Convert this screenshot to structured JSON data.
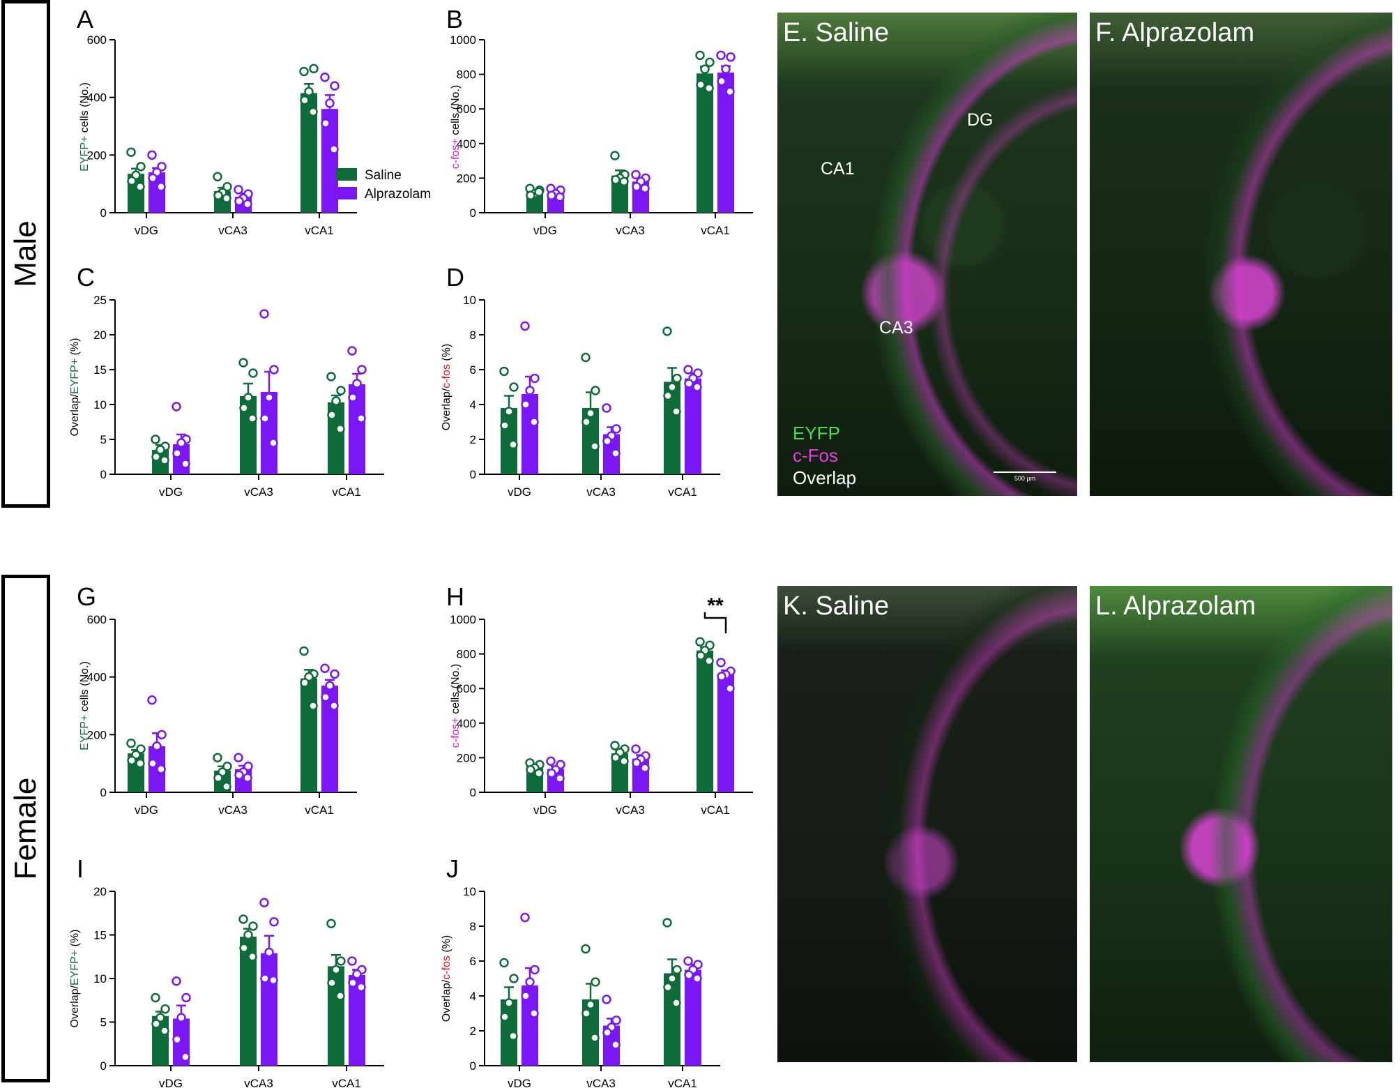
{
  "sections": {
    "male": "Male",
    "female": "Female"
  },
  "legend": {
    "items": [
      {
        "label": "Saline",
        "color": "#0e6b3a"
      },
      {
        "label": "Alprazolam",
        "color": "#7b16f5"
      }
    ]
  },
  "colors": {
    "saline": "#0e6b3a",
    "alprazolam": "#7b16f5",
    "green_text": "#0e6b3a",
    "magenta_text": "#d41bc8",
    "red_text": "#e0101a"
  },
  "chart_data": [
    {
      "panel": "A",
      "type": "bar",
      "categories": [
        "vDG",
        "vCA3",
        "vCA1"
      ],
      "ylim": [
        0,
        600
      ],
      "yticks": [
        0,
        200,
        400,
        600
      ],
      "ylabel_parts": [
        {
          "text": "EYFP+",
          "color": "green"
        },
        {
          "text": " cells (No.)",
          "color": "black"
        }
      ],
      "series": [
        {
          "name": "Saline",
          "values": [
            135,
            75,
            415
          ],
          "errors": [
            18,
            12,
            32
          ],
          "points": [
            [
              210,
              160,
              130,
              110,
              90
            ],
            [
              125,
              90,
              70,
              60,
              50
            ],
            [
              490,
              500,
              420,
              390,
              350
            ]
          ]
        },
        {
          "name": "Alprazolam",
          "values": [
            140,
            55,
            360
          ],
          "errors": [
            15,
            12,
            48
          ],
          "points": [
            [
              200,
              160,
              140,
              120,
              90
            ],
            [
              80,
              65,
              50,
              40,
              30
            ],
            [
              470,
              440,
              380,
              310,
              220
            ]
          ]
        }
      ]
    },
    {
      "panel": "B",
      "type": "bar",
      "categories": [
        "vDG",
        "vCA3",
        "vCA1"
      ],
      "ylim": [
        0,
        1000
      ],
      "yticks": [
        0,
        200,
        400,
        600,
        800,
        1000
      ],
      "ylabel_parts": [
        {
          "text": "c-fos+",
          "color": "magenta"
        },
        {
          "text": " cells (No.)",
          "color": "black"
        }
      ],
      "series": [
        {
          "name": "Saline",
          "values": [
            120,
            215,
            805
          ],
          "errors": [
            12,
            30,
            40
          ],
          "points": [
            [
              140,
              130,
              110,
              100,
              120
            ],
            [
              330,
              220,
              200,
              190,
              180
            ],
            [
              910,
              870,
              830,
              740,
              720
            ]
          ]
        },
        {
          "name": "Alprazolam",
          "values": [
            115,
            180,
            810
          ],
          "errors": [
            10,
            20,
            38
          ],
          "points": [
            [
              140,
              130,
              110,
              100,
              90
            ],
            [
              220,
              200,
              180,
              150,
              140
            ],
            [
              910,
              900,
              830,
              760,
              700
            ]
          ]
        }
      ]
    },
    {
      "panel": "C",
      "type": "bar",
      "categories": [
        "vDG",
        "vCA3",
        "vCA1"
      ],
      "ylim": [
        0,
        25
      ],
      "yticks": [
        0,
        5,
        10,
        15,
        20,
        25
      ],
      "ylabel_parts": [
        {
          "text": "Overlap/",
          "color": "black"
        },
        {
          "text": "EYFP+",
          "color": "green"
        },
        {
          "text": " (%)",
          "color": "black"
        }
      ],
      "series": [
        {
          "name": "Saline",
          "values": [
            3.5,
            11.2,
            10.3
          ],
          "errors": [
            0.7,
            1.8,
            1.0
          ],
          "points": [
            [
              5,
              4,
              3.5,
              2.5,
              2
            ],
            [
              16,
              14.5,
              11,
              9.5,
              8
            ],
            [
              14,
              12,
              10.5,
              8.5,
              6.5
            ]
          ]
        },
        {
          "name": "Alprazolam",
          "values": [
            4.3,
            11.8,
            12.9
          ],
          "errors": [
            1.4,
            2.9,
            1.5
          ],
          "points": [
            [
              9.7,
              5,
              4.5,
              3,
              1.5
            ],
            [
              23,
              15,
              11,
              8,
              4.5
            ],
            [
              17.7,
              15,
              13,
              11,
              8
            ]
          ]
        }
      ]
    },
    {
      "panel": "D",
      "type": "bar",
      "categories": [
        "vDG",
        "vCA3",
        "vCA1"
      ],
      "ylim": [
        0,
        10
      ],
      "yticks": [
        0,
        2,
        4,
        6,
        8,
        10
      ],
      "ylabel_parts": [
        {
          "text": "Overlap/",
          "color": "black"
        },
        {
          "text": "c-fos",
          "color": "red"
        },
        {
          "text": " (%)",
          "color": "black"
        }
      ],
      "series": [
        {
          "name": "Saline",
          "values": [
            3.8,
            3.8,
            5.3
          ],
          "errors": [
            0.7,
            0.9,
            0.8
          ],
          "points": [
            [
              5.9,
              5,
              3.6,
              2.8,
              1.7
            ],
            [
              6.7,
              4.8,
              3.5,
              3,
              1.6
            ],
            [
              8.2,
              5.5,
              5,
              4.5,
              3.6
            ]
          ]
        },
        {
          "name": "Alprazolam",
          "values": [
            4.6,
            2.3,
            5.5
          ],
          "errors": [
            1.0,
            0.4,
            0.3
          ],
          "points": [
            [
              8.5,
              5.5,
              4.8,
              4,
              3
            ],
            [
              3.8,
              2.6,
              2.2,
              1.9,
              1.2
            ],
            [
              6,
              5.8,
              5.5,
              5.2,
              5
            ]
          ]
        }
      ]
    },
    {
      "panel": "G",
      "type": "bar",
      "categories": [
        "vDG",
        "vCA3",
        "vCA1"
      ],
      "ylim": [
        0,
        600
      ],
      "yticks": [
        0,
        200,
        400,
        600
      ],
      "ylabel_parts": [
        {
          "text": "EYFP+",
          "color": "green"
        },
        {
          "text": " cells (No.)",
          "color": "black"
        }
      ],
      "series": [
        {
          "name": "Saline",
          "values": [
            135,
            75,
            395
          ],
          "errors": [
            12,
            15,
            30
          ],
          "points": [
            [
              170,
              150,
              130,
              110,
              100
            ],
            [
              120,
              90,
              70,
              50,
              20
            ],
            [
              490,
              410,
              400,
              380,
              300
            ]
          ]
        },
        {
          "name": "Alprazolam",
          "values": [
            160,
            80,
            370
          ],
          "errors": [
            45,
            12,
            20
          ],
          "points": [
            [
              320,
              200,
              160,
              100,
              80
            ],
            [
              120,
              90,
              70,
              60,
              50
            ],
            [
              430,
              410,
              370,
              330,
              300
            ]
          ]
        }
      ]
    },
    {
      "panel": "H",
      "type": "bar",
      "categories": [
        "vDG",
        "vCA3",
        "vCA1"
      ],
      "ylim": [
        0,
        1000
      ],
      "yticks": [
        0,
        200,
        400,
        600,
        800,
        1000
      ],
      "ylabel_parts": [
        {
          "text": "c-fos+",
          "color": "magenta"
        },
        {
          "text": " cells (No.)",
          "color": "black"
        }
      ],
      "significance": {
        "text": "**",
        "category": "vCA1"
      },
      "series": [
        {
          "name": "Saline",
          "values": [
            150,
            225,
            820
          ],
          "errors": [
            12,
            20,
            18
          ],
          "points": [
            [
              170,
              160,
              140,
              130,
              110
            ],
            [
              270,
              250,
              230,
              200,
              180
            ],
            [
              870,
              850,
              820,
              790,
              760
            ]
          ]
        },
        {
          "name": "Alprazolam",
          "values": [
            135,
            195,
            685
          ],
          "errors": [
            15,
            20,
            20
          ],
          "points": [
            [
              180,
              160,
              130,
              110,
              80
            ],
            [
              250,
              210,
              190,
              170,
              140
            ],
            [
              750,
              700,
              680,
              670,
              600
            ]
          ]
        }
      ]
    },
    {
      "panel": "I",
      "type": "bar",
      "categories": [
        "vDG",
        "vCA3",
        "vCA1"
      ],
      "ylim": [
        0,
        20
      ],
      "yticks": [
        0,
        5,
        10,
        15,
        20
      ],
      "ylabel_parts": [
        {
          "text": "Overlap/",
          "color": "black"
        },
        {
          "text": "EYFP+",
          "color": "green"
        },
        {
          "text": " (%)",
          "color": "black"
        }
      ],
      "series": [
        {
          "name": "Saline",
          "values": [
            5.7,
            14.8,
            11.4
          ],
          "errors": [
            0.5,
            0.9,
            1.3
          ],
          "points": [
            [
              7.8,
              6.5,
              5.5,
              4.8,
              4
            ],
            [
              16.8,
              16,
              15,
              13.5,
              12.5
            ],
            [
              16.3,
              12,
              11,
              9.5,
              8
            ]
          ]
        },
        {
          "name": "Alprazolam",
          "values": [
            5.4,
            12.9,
            10.4
          ],
          "errors": [
            1.5,
            2.0,
            0.6
          ],
          "points": [
            [
              9.7,
              7.8,
              5.5,
              3,
              1
            ],
            [
              18.7,
              16.5,
              13,
              10,
              9.8
            ],
            [
              12,
              11,
              10.5,
              9.5,
              9
            ]
          ]
        }
      ]
    },
    {
      "panel": "J",
      "type": "bar",
      "categories": [
        "vDG",
        "vCA3",
        "vCA1"
      ],
      "ylim": [
        0,
        10
      ],
      "yticks": [
        0,
        2,
        4,
        6,
        8,
        10
      ],
      "ylabel_parts": [
        {
          "text": "Overlap/",
          "color": "black"
        },
        {
          "text": "c-fos",
          "color": "red"
        },
        {
          "text": " (%)",
          "color": "black"
        }
      ],
      "series": [
        {
          "name": "Saline",
          "values": [
            3.8,
            3.8,
            5.3
          ],
          "errors": [
            0.7,
            0.9,
            0.8
          ],
          "points": [
            [
              5.9,
              5,
              3.6,
              2.8,
              1.7
            ],
            [
              6.7,
              4.8,
              3.5,
              3,
              1.6
            ],
            [
              8.2,
              5.5,
              5,
              4.5,
              3.6
            ]
          ]
        },
        {
          "name": "Alprazolam",
          "values": [
            4.6,
            2.3,
            5.5
          ],
          "errors": [
            1.0,
            0.4,
            0.3
          ],
          "points": [
            [
              8.5,
              5.5,
              4.8,
              4,
              3
            ],
            [
              3.8,
              2.6,
              2.2,
              1.9,
              1.2
            ],
            [
              6,
              5.8,
              5.5,
              5.2,
              5
            ]
          ]
        }
      ]
    }
  ],
  "micrographs": {
    "E": {
      "title": "E. Saline",
      "labels": [
        "DG",
        "CA1",
        "CA3"
      ],
      "channels": [
        "EYFP",
        "c-Fos",
        "Overlap"
      ],
      "scale": "500 µm"
    },
    "F": {
      "title": "F. Alprazolam"
    },
    "K": {
      "title": "K. Saline"
    },
    "L": {
      "title": "L. Alprazolam"
    }
  }
}
